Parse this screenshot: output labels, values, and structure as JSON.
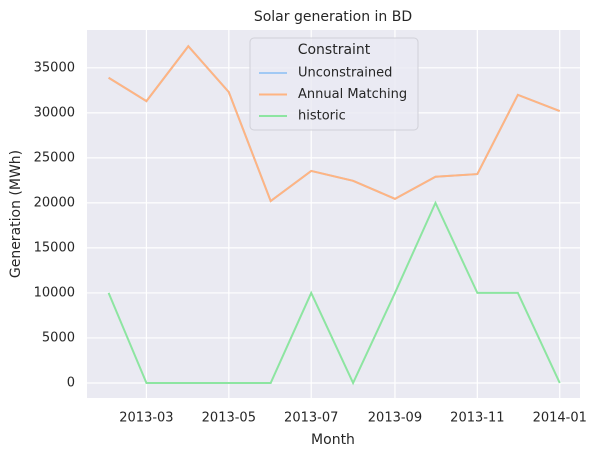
{
  "chart_data": {
    "type": "line",
    "title": "Solar generation in BD",
    "xlabel": "Month",
    "ylabel": "Generation (MWh)",
    "legend_title": "Constraint",
    "legend": "upper center",
    "grid": true,
    "x": [
      "2013-02",
      "2013-03",
      "2013-04",
      "2013-05",
      "2013-06",
      "2013-07",
      "2013-08",
      "2013-09",
      "2013-10",
      "2013-11",
      "2013-12",
      "2014-01"
    ],
    "xlim": [
      "2013-01-16",
      "2014-01-16"
    ],
    "xticks": [
      "2013-03",
      "2013-05",
      "2013-07",
      "2013-09",
      "2013-11",
      "2014-01"
    ],
    "ylim": [
      -1670,
      39200
    ],
    "yticks": [
      0,
      5000,
      10000,
      15000,
      20000,
      25000,
      30000,
      35000
    ],
    "series": [
      {
        "name": "Unconstrained",
        "color": "#a1c9f4",
        "values": [
          33900,
          31300,
          37400,
          32300,
          20200,
          23550,
          22450,
          20450,
          22900,
          23200,
          32000,
          30200
        ]
      },
      {
        "name": "Annual Matching",
        "color": "#ffb482",
        "values": [
          33900,
          31300,
          37400,
          32300,
          20200,
          23550,
          22450,
          20450,
          22900,
          23200,
          32000,
          30200
        ]
      },
      {
        "name": "historic",
        "color": "#8de5a1",
        "values": [
          10000,
          0,
          0,
          0,
          0,
          10000,
          0,
          10000,
          20000,
          10000,
          10000,
          0
        ]
      }
    ]
  }
}
